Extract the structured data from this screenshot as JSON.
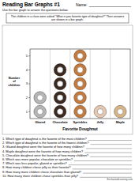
{
  "header": {
    "title": "Reading Bar Graphs #1",
    "name_label": "Name:",
    "instructions": "Use the bar graph to answer the questions below."
  },
  "intro": "The children in a class were asked \"What is you favorite type of doughnut?\" Their answers are shown in a bar graph.",
  "chart_data": {
    "type": "pictograph",
    "title": "Favorite Doughnut",
    "y_label": "Number of children",
    "categories": [
      "Glazed",
      "Chocolate",
      "Sprinkles",
      "Jelly",
      "Maple"
    ],
    "values": [
      2,
      4,
      5,
      1,
      1
    ],
    "colors": [
      "#b5b5b5",
      "#3b2a20",
      "#c47a3c",
      "#e6c7b0",
      "#d6b486"
    ],
    "ylim": [
      0.5,
      5.5
    ],
    "yticks": [
      1,
      2,
      3,
      4,
      5
    ],
    "grid": false
  },
  "questions": [
    "1. Which type of doughnut is the favorite of the most children?",
    "2. Which type of doughnut is the favorite of the fewest children?",
    "3. Glazed doughnut were the favorite of how many children?",
    "4. Maple doughnut were the favorite of how many children?",
    "5. Chocolate doughnut were the favorite of how many children?",
    "6. Which was more popular, chocolate or sprinkles?",
    "7. Which was less popular, glazed or sprinkles?",
    "8. How many children chose jelly as their favorite?",
    "9. How many more children chose chocolate than glazed?",
    "10. How many more children chose sprinkles than jelly?"
  ],
  "footer": "EnchantedLearning.com"
}
